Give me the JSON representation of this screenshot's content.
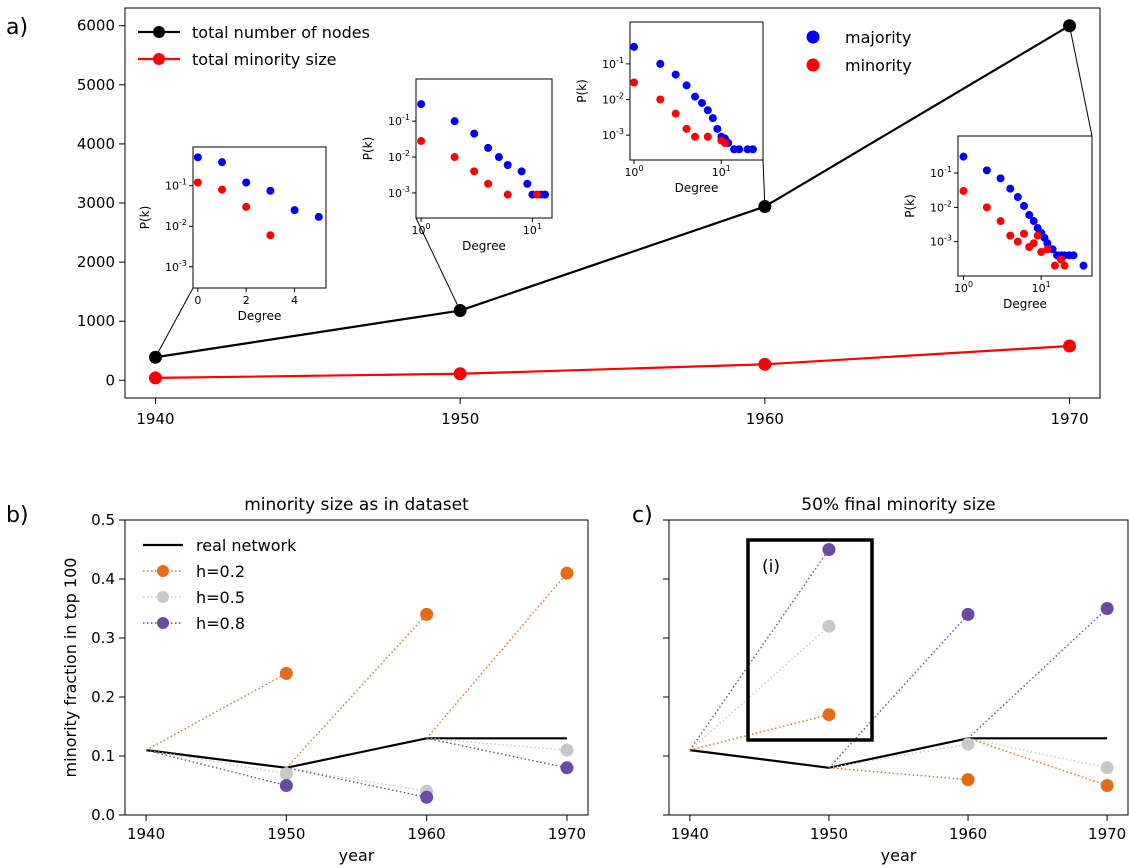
{
  "colors": {
    "total": "#000000",
    "minority_size": "#ff0000",
    "majority_dot": "#0000ff",
    "minority_dot": "#ff0000",
    "real_network": "#000000",
    "h02": "#e66b15",
    "h05": "#c8c8c8",
    "h08": "#6a4ba4"
  },
  "panels": {
    "a": "a)",
    "b": "b)",
    "c": "c)"
  },
  "inset_highlight_label": "(i)",
  "chart_data": [
    {
      "id": "a",
      "type": "line",
      "x": [
        1940,
        1950,
        1960,
        1970
      ],
      "xlim": [
        1939,
        1971
      ],
      "ylim": [
        -300,
        6300
      ],
      "xticks": [
        1940,
        1950,
        1960,
        1970
      ],
      "yticks": [
        0,
        1000,
        2000,
        3000,
        4000,
        5000,
        6000
      ],
      "series": [
        {
          "name": "total number of nodes",
          "values": [
            390,
            1180,
            2940,
            6000
          ]
        },
        {
          "name": "total minority size",
          "values": [
            40,
            110,
            270,
            580
          ]
        }
      ],
      "dot_legend": [
        "majority",
        "minority"
      ],
      "insets": [
        {
          "year": 1940,
          "xscale": "linear",
          "xlim": [
            -0.2,
            5.3
          ],
          "xticks": [
            0,
            2,
            4
          ],
          "yscale": "log",
          "ylim": [
            0.0003,
            0.9
          ],
          "xlabel": "Degree",
          "ylabel": "P(k)",
          "majority": [
            [
              0,
              0.5
            ],
            [
              1,
              0.38
            ],
            [
              2,
              0.12
            ],
            [
              3,
              0.075
            ],
            [
              4,
              0.025
            ],
            [
              5,
              0.017
            ]
          ],
          "minority": [
            [
              0,
              0.12
            ],
            [
              1,
              0.08
            ],
            [
              2,
              0.03
            ],
            [
              3,
              0.006
            ]
          ]
        },
        {
          "year": 1950,
          "xscale": "log",
          "xlim": [
            0.9,
            15
          ],
          "xticks": [
            1,
            10
          ],
          "yscale": "log",
          "ylim": [
            0.0002,
            1.5
          ],
          "xlabel": "Degree",
          "ylabel": "P(k)",
          "majority": [
            [
              1,
              0.3
            ],
            [
              2,
              0.1
            ],
            [
              3,
              0.045
            ],
            [
              4,
              0.018
            ],
            [
              5,
              0.01
            ],
            [
              6,
              0.006
            ],
            [
              8,
              0.004
            ],
            [
              9,
              0.0018
            ],
            [
              10,
              0.0009
            ],
            [
              12,
              0.0009
            ],
            [
              13,
              0.0009
            ]
          ],
          "minority": [
            [
              1,
              0.028
            ],
            [
              2,
              0.01
            ],
            [
              3,
              0.004
            ],
            [
              4,
              0.0018
            ],
            [
              6,
              0.0009
            ],
            [
              11,
              0.0009
            ]
          ]
        },
        {
          "year": 1960,
          "xscale": "log",
          "xlim": [
            0.9,
            30
          ],
          "xticks": [
            1,
            10
          ],
          "yscale": "log",
          "ylim": [
            0.0002,
            1.5
          ],
          "xlabel": "Degree",
          "ylabel": "P(k)",
          "majority": [
            [
              1,
              0.3
            ],
            [
              2,
              0.1
            ],
            [
              3,
              0.05
            ],
            [
              4,
              0.025
            ],
            [
              5,
              0.012
            ],
            [
              6,
              0.008
            ],
            [
              7,
              0.005
            ],
            [
              8,
              0.003
            ],
            [
              9,
              0.0015
            ],
            [
              10,
              0.0009
            ],
            [
              11,
              0.0008
            ],
            [
              12,
              0.0006
            ],
            [
              14,
              0.0004
            ],
            [
              16,
              0.0004
            ],
            [
              20,
              0.0004
            ],
            [
              23,
              0.0004
            ]
          ],
          "minority": [
            [
              1,
              0.03
            ],
            [
              2,
              0.01
            ],
            [
              3,
              0.004
            ],
            [
              4,
              0.0015
            ],
            [
              5,
              0.0009
            ],
            [
              7,
              0.0009
            ],
            [
              10,
              0.0007
            ],
            [
              11,
              0.0006
            ]
          ]
        },
        {
          "year": 1970,
          "xscale": "log",
          "xlim": [
            0.85,
            45
          ],
          "xticks": [
            1,
            10
          ],
          "yscale": "log",
          "ylim": [
            0.0001,
            1.2
          ],
          "xlabel": "Degree",
          "ylabel": "P(k)",
          "majority": [
            [
              1,
              0.3
            ],
            [
              2,
              0.12
            ],
            [
              3,
              0.07
            ],
            [
              4,
              0.035
            ],
            [
              5,
              0.02
            ],
            [
              6,
              0.011
            ],
            [
              7,
              0.006
            ],
            [
              8,
              0.004
            ],
            [
              9,
              0.0025
            ],
            [
              10,
              0.0018
            ],
            [
              11,
              0.0013
            ],
            [
              12,
              0.0009
            ],
            [
              14,
              0.0006
            ],
            [
              16,
              0.0004
            ],
            [
              18,
              0.0004
            ],
            [
              20,
              0.0004
            ],
            [
              23,
              0.0004
            ],
            [
              26,
              0.0004
            ],
            [
              35,
              0.0002
            ]
          ],
          "minority": [
            [
              1,
              0.03
            ],
            [
              2,
              0.01
            ],
            [
              3,
              0.004
            ],
            [
              4,
              0.0015
            ],
            [
              5,
              0.001
            ],
            [
              6,
              0.0017
            ],
            [
              7,
              0.0007
            ],
            [
              8,
              0.0009
            ],
            [
              9,
              0.0015
            ],
            [
              10,
              0.0005
            ],
            [
              12,
              0.0006
            ],
            [
              15,
              0.0002
            ],
            [
              18,
              0.0003
            ],
            [
              20,
              0.0002
            ]
          ]
        }
      ]
    },
    {
      "id": "b",
      "type": "line",
      "title": "minority size as in dataset",
      "xlabel": "year",
      "ylabel": "minority fraction in top 100",
      "x": [
        1940,
        1950,
        1960,
        1970
      ],
      "xlim": [
        1938.5,
        1971.5
      ],
      "ylim": [
        0.0,
        0.5
      ],
      "yticks": [
        0.0,
        0.1,
        0.2,
        0.3,
        0.4,
        0.5
      ],
      "real": [
        0.11,
        0.08,
        0.13,
        0.13
      ],
      "legend": [
        "real network",
        "h=0.2",
        "h=0.5",
        "h=0.8"
      ],
      "predictions": {
        "h02": [
          0.24,
          0.34,
          0.41
        ],
        "h05": [
          0.07,
          0.04,
          0.11
        ],
        "h08": [
          0.05,
          0.03,
          0.08
        ]
      }
    },
    {
      "id": "c",
      "type": "line",
      "title": "50% final minority size",
      "xlabel": "year",
      "x": [
        1940,
        1950,
        1960,
        1970
      ],
      "xlim": [
        1938.5,
        1971.5
      ],
      "ylim": [
        0.0,
        0.5
      ],
      "yticks": [
        0.0,
        0.1,
        0.2,
        0.3,
        0.4,
        0.5
      ],
      "real": [
        0.11,
        0.08,
        0.13,
        0.13
      ],
      "predictions": {
        "h02": [
          0.17,
          0.06,
          0.05
        ],
        "h05": [
          0.32,
          0.12,
          0.08
        ],
        "h08": [
          0.45,
          0.34,
          0.35
        ]
      }
    }
  ]
}
